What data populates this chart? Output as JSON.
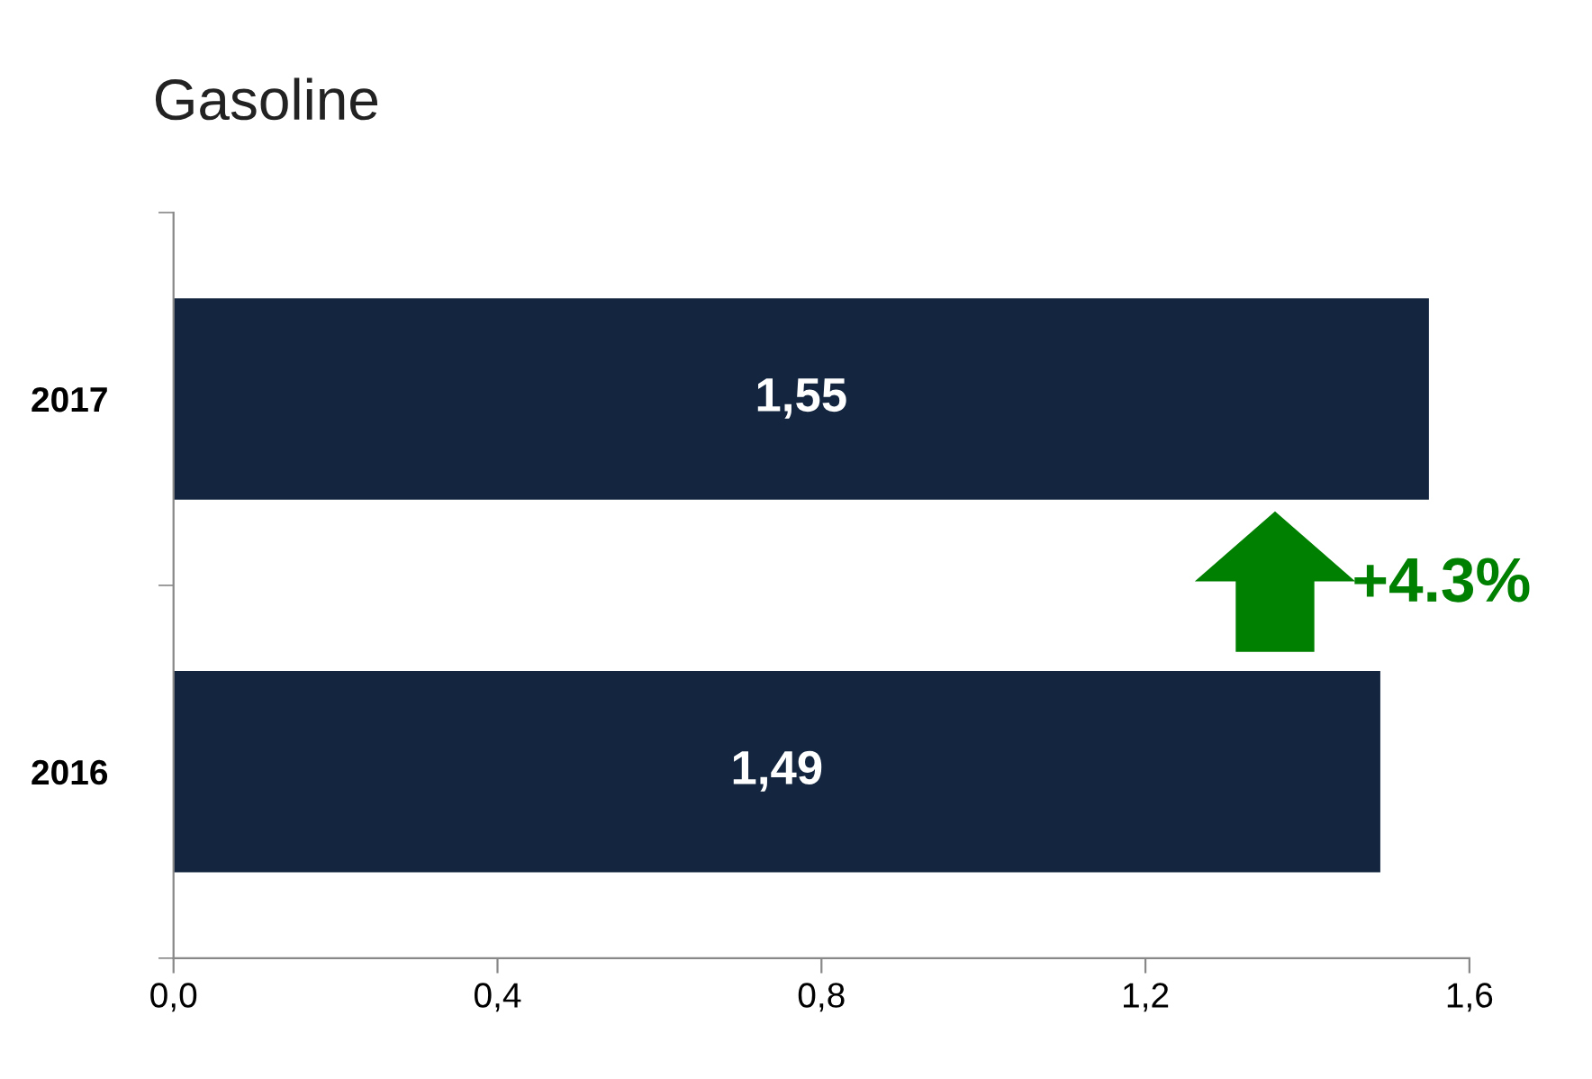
{
  "chart_data": {
    "type": "bar",
    "orientation": "horizontal",
    "title": "Gasoline",
    "categories": [
      "2017",
      "2016"
    ],
    "values": [
      1.55,
      1.49
    ],
    "value_labels": [
      "1,55",
      "1,49"
    ],
    "color": "#13253f",
    "xlim": [
      0,
      1.6
    ],
    "xticks": [
      {
        "value": 0,
        "label": "0,0"
      },
      {
        "value": 0.4,
        "label": "0,4"
      },
      {
        "value": 0.8,
        "label": "0,8"
      },
      {
        "value": 1.2,
        "label": "1,2"
      },
      {
        "value": 1.6,
        "label": "1,6"
      }
    ],
    "annotations": [
      "+4.3%"
    ],
    "grid": false
  }
}
